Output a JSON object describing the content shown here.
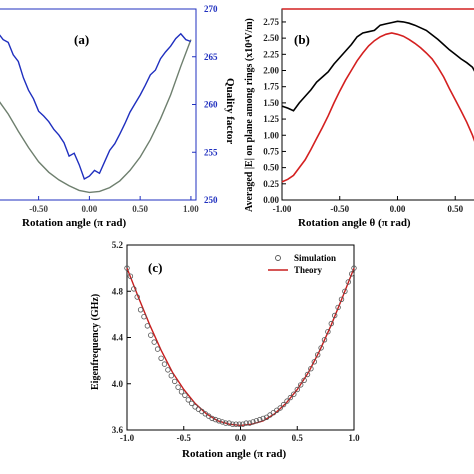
{
  "chart_data": [
    {
      "panel": "(a)",
      "type": "line",
      "xlabel": "Rotation angle (π rad)",
      "x_ticks": [
        "-0.50",
        "0.00",
        "0.50",
        "1.00"
      ],
      "xlim": [
        -0.9,
        1.05
      ],
      "ylim_left": [
        250,
        270
      ],
      "ylabel_right": "Quality factor",
      "y_ticks_right": [
        "250",
        "255",
        "260",
        "265",
        "270"
      ],
      "ylim_right": [
        250,
        270
      ],
      "colors": {
        "quality": "#1f2fbf",
        "field": "#6e7f6e",
        "right_axis": "#1f2fbf"
      },
      "series": [
        {
          "axis": "right",
          "x": [
            -0.9,
            -0.85,
            -0.8,
            -0.75,
            -0.7,
            -0.65,
            -0.6,
            -0.55,
            -0.5,
            -0.45,
            -0.4,
            -0.35,
            -0.3,
            -0.25,
            -0.2,
            -0.15,
            -0.1,
            -0.05,
            0.0,
            0.05,
            0.1,
            0.15,
            0.2,
            0.25,
            0.3,
            0.35,
            0.4,
            0.45,
            0.5,
            0.55,
            0.6,
            0.65,
            0.7,
            0.75,
            0.8,
            0.85,
            0.9,
            0.95,
            1.0
          ],
          "y": [
            267.5,
            266.8,
            266.5,
            265.2,
            264.5,
            262.8,
            261.5,
            260.6,
            259.3,
            258.8,
            258.2,
            257.4,
            256.8,
            256.0,
            254.6,
            254.9,
            253.7,
            252.2,
            252.5,
            253.1,
            252.8,
            254.0,
            255.2,
            255.9,
            256.9,
            258.0,
            259.2,
            260.1,
            261.0,
            262.0,
            263.1,
            263.6,
            264.8,
            265.5,
            266.1,
            266.9,
            267.4,
            266.8,
            266.6
          ]
        },
        {
          "axis": "left",
          "x": [
            -0.9,
            -0.8,
            -0.7,
            -0.6,
            -0.5,
            -0.4,
            -0.3,
            -0.2,
            -0.1,
            0.0,
            0.1,
            0.2,
            0.3,
            0.4,
            0.5,
            0.6,
            0.7,
            0.8,
            0.9,
            1.0
          ],
          "y": [
            260.5,
            259.0,
            257.2,
            255.5,
            254.0,
            252.9,
            252.1,
            251.5,
            251.0,
            250.8,
            250.9,
            251.3,
            252.0,
            253.1,
            254.5,
            256.3,
            258.5,
            261.0,
            264.0,
            266.8
          ]
        }
      ]
    },
    {
      "panel": "(b)",
      "type": "line",
      "xlabel": "Rotation angle θ (π rad)",
      "x_ticks": [
        "-1.00",
        "-0.50",
        "0.00",
        "0.50"
      ],
      "xlim": [
        -1.0,
        0.68
      ],
      "ylabel": "Averaged |E| on plane among rings (x10⁴V/m)",
      "y_ticks": [
        "0.00",
        "0.25",
        "0.50",
        "0.75",
        "1.00",
        "1.25",
        "1.50",
        "1.75",
        "2.00",
        "2.25",
        "2.50",
        "2.75"
      ],
      "ylim": [
        0.0,
        2.95
      ],
      "colors": {
        "black": "#000000",
        "red": "#d42020"
      },
      "series": [
        {
          "color": "black",
          "x": [
            -1.0,
            -0.95,
            -0.9,
            -0.85,
            -0.8,
            -0.75,
            -0.7,
            -0.65,
            -0.6,
            -0.55,
            -0.5,
            -0.45,
            -0.4,
            -0.35,
            -0.3,
            -0.25,
            -0.2,
            -0.15,
            -0.1,
            -0.05,
            0.0,
            0.05,
            0.1,
            0.15,
            0.2,
            0.25,
            0.3,
            0.35,
            0.4,
            0.45,
            0.5,
            0.55,
            0.6,
            0.65,
            0.68
          ],
          "y": [
            1.45,
            1.42,
            1.38,
            1.5,
            1.6,
            1.7,
            1.82,
            1.9,
            1.98,
            2.1,
            2.2,
            2.3,
            2.4,
            2.52,
            2.58,
            2.6,
            2.62,
            2.7,
            2.72,
            2.74,
            2.76,
            2.75,
            2.73,
            2.7,
            2.66,
            2.62,
            2.55,
            2.48,
            2.4,
            2.32,
            2.25,
            2.18,
            2.12,
            2.05,
            1.95
          ]
        },
        {
          "color": "red",
          "x": [
            -1.0,
            -0.95,
            -0.9,
            -0.85,
            -0.8,
            -0.75,
            -0.7,
            -0.65,
            -0.6,
            -0.55,
            -0.5,
            -0.45,
            -0.4,
            -0.35,
            -0.3,
            -0.25,
            -0.2,
            -0.15,
            -0.1,
            -0.05,
            0.0,
            0.05,
            0.1,
            0.15,
            0.2,
            0.25,
            0.3,
            0.35,
            0.4,
            0.45,
            0.5,
            0.55,
            0.6,
            0.65,
            0.68
          ],
          "y": [
            0.28,
            0.32,
            0.38,
            0.5,
            0.62,
            0.78,
            0.95,
            1.12,
            1.3,
            1.5,
            1.68,
            1.85,
            2.0,
            2.15,
            2.27,
            2.38,
            2.46,
            2.52,
            2.56,
            2.58,
            2.56,
            2.53,
            2.48,
            2.42,
            2.35,
            2.27,
            2.18,
            2.05,
            1.9,
            1.72,
            1.55,
            1.38,
            1.2,
            1.0,
            0.85
          ]
        }
      ]
    },
    {
      "panel": "(c)",
      "type": "line",
      "xlabel": "Rotation angle (π rad)",
      "ylabel": "Eigenfrequency (GHz)",
      "x_ticks": [
        "-1.0",
        "-0.5",
        "0.0",
        "0.5",
        "1.0"
      ],
      "y_ticks": [
        "3.6",
        "4.0",
        "4.4",
        "4.8",
        "5.2"
      ],
      "xlim": [
        -1.0,
        1.0
      ],
      "ylim": [
        3.6,
        5.2
      ],
      "legend": {
        "position": "top-right",
        "entries": [
          "Simulation",
          "Theory"
        ]
      },
      "colors": {
        "simulation": "#555555",
        "theory": "#c81e1e"
      },
      "series": [
        {
          "name": "Simulation",
          "kind": "scatter",
          "x": [
            -1.0,
            -0.97,
            -0.94,
            -0.91,
            -0.88,
            -0.85,
            -0.82,
            -0.79,
            -0.76,
            -0.73,
            -0.7,
            -0.67,
            -0.64,
            -0.61,
            -0.58,
            -0.55,
            -0.52,
            -0.49,
            -0.46,
            -0.43,
            -0.4,
            -0.37,
            -0.34,
            -0.31,
            -0.28,
            -0.25,
            -0.22,
            -0.19,
            -0.16,
            -0.13,
            -0.1,
            -0.07,
            -0.04,
            -0.01,
            0.02,
            0.05,
            0.08,
            0.11,
            0.14,
            0.17,
            0.2,
            0.23,
            0.26,
            0.29,
            0.32,
            0.35,
            0.38,
            0.41,
            0.44,
            0.47,
            0.5,
            0.53,
            0.56,
            0.59,
            0.62,
            0.65,
            0.68,
            0.71,
            0.74,
            0.77,
            0.8,
            0.83,
            0.86,
            0.89,
            0.92,
            0.95,
            0.98,
            1.0
          ],
          "y": [
            5.0,
            4.93,
            4.82,
            4.75,
            4.64,
            4.58,
            4.5,
            4.42,
            4.36,
            4.3,
            4.22,
            4.17,
            4.12,
            4.07,
            4.02,
            3.97,
            3.93,
            3.9,
            3.86,
            3.83,
            3.8,
            3.78,
            3.76,
            3.74,
            3.72,
            3.7,
            3.69,
            3.68,
            3.67,
            3.66,
            3.66,
            3.65,
            3.65,
            3.65,
            3.65,
            3.66,
            3.66,
            3.67,
            3.68,
            3.69,
            3.7,
            3.71,
            3.73,
            3.75,
            3.77,
            3.79,
            3.82,
            3.85,
            3.88,
            3.91,
            3.95,
            3.99,
            4.03,
            4.08,
            4.13,
            4.19,
            4.25,
            4.31,
            4.38,
            4.45,
            4.52,
            4.59,
            4.66,
            4.73,
            4.8,
            4.88,
            4.95,
            5.0
          ]
        },
        {
          "name": "Theory",
          "kind": "line",
          "x": [
            -1.0,
            -0.9,
            -0.8,
            -0.7,
            -0.6,
            -0.5,
            -0.4,
            -0.3,
            -0.2,
            -0.1,
            0.0,
            0.1,
            0.2,
            0.3,
            0.4,
            0.5,
            0.6,
            0.7,
            0.8,
            0.9,
            1.0
          ],
          "y": [
            5.0,
            4.75,
            4.51,
            4.29,
            4.1,
            3.95,
            3.83,
            3.74,
            3.68,
            3.65,
            3.64,
            3.65,
            3.68,
            3.74,
            3.83,
            3.95,
            4.1,
            4.29,
            4.51,
            4.75,
            5.0
          ]
        }
      ]
    }
  ]
}
